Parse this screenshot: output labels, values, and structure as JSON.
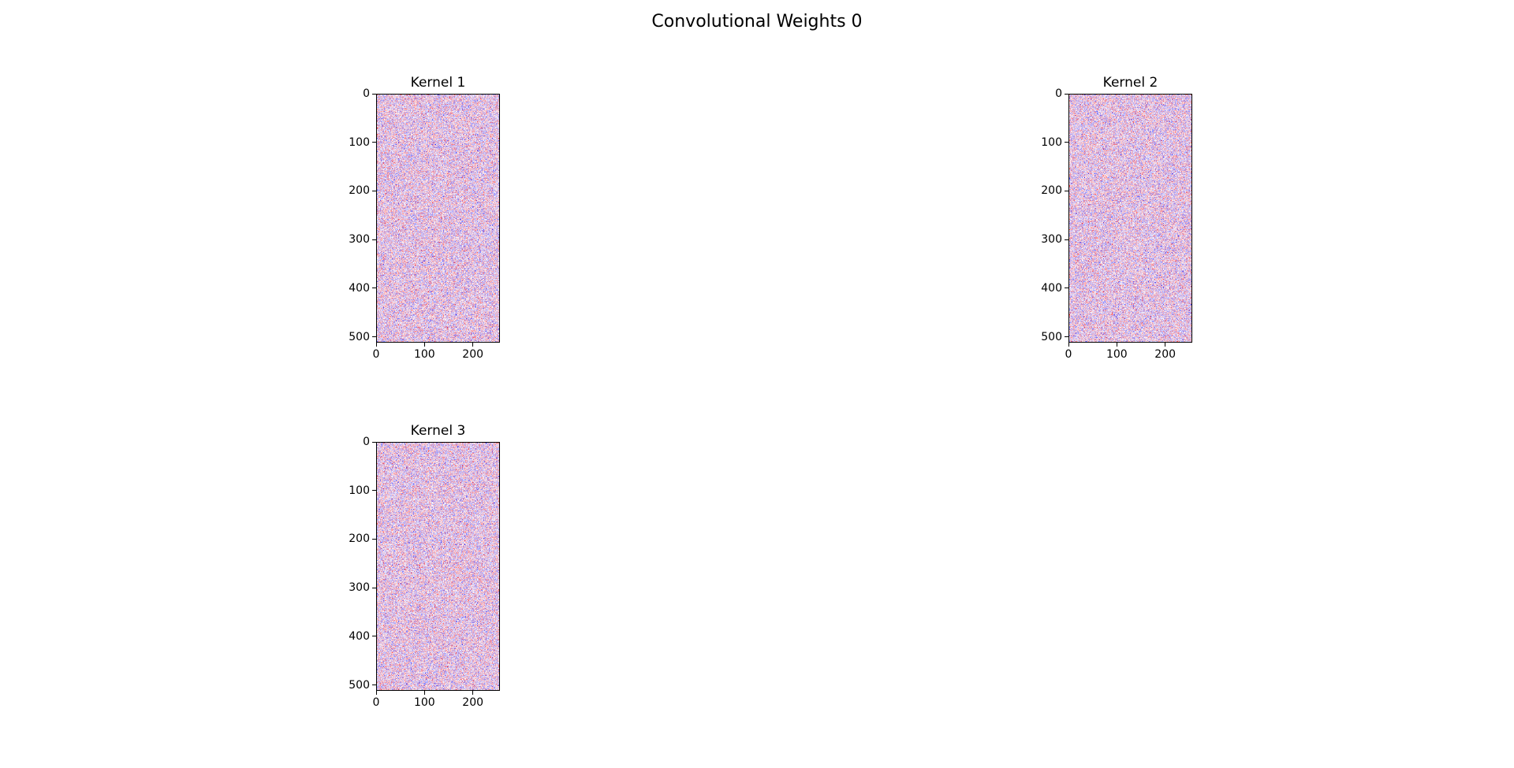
{
  "figure": {
    "title": "Convolutional Weights 0"
  },
  "chart_data": [
    {
      "type": "heatmap",
      "title": "Kernel 1",
      "colormap": "bwr",
      "colors": {
        "low": "#0000ff",
        "mid": "#ffffff",
        "high": "#ff0000"
      },
      "rows": 512,
      "cols": 256,
      "xlim": [
        0,
        256
      ],
      "ylim": [
        512,
        0
      ],
      "xticks": [
        0,
        100,
        200
      ],
      "yticks": [
        0,
        100,
        200,
        300,
        400,
        500
      ],
      "xlabel": "",
      "ylabel": "",
      "grid": false
    },
    {
      "type": "heatmap",
      "title": "Kernel 2",
      "colormap": "bwr",
      "colors": {
        "low": "#0000ff",
        "mid": "#ffffff",
        "high": "#ff0000"
      },
      "rows": 512,
      "cols": 256,
      "xlim": [
        0,
        256
      ],
      "ylim": [
        512,
        0
      ],
      "xticks": [
        0,
        100,
        200
      ],
      "yticks": [
        0,
        100,
        200,
        300,
        400,
        500
      ],
      "xlabel": "",
      "ylabel": "",
      "grid": false
    },
    {
      "type": "heatmap",
      "title": "Kernel 3",
      "colormap": "bwr",
      "colors": {
        "low": "#0000ff",
        "mid": "#ffffff",
        "high": "#ff0000"
      },
      "rows": 512,
      "cols": 256,
      "xlim": [
        0,
        256
      ],
      "ylim": [
        512,
        0
      ],
      "xticks": [
        0,
        100,
        200
      ],
      "yticks": [
        0,
        100,
        200,
        300,
        400,
        500
      ],
      "xlabel": "",
      "ylabel": "",
      "grid": false
    }
  ]
}
